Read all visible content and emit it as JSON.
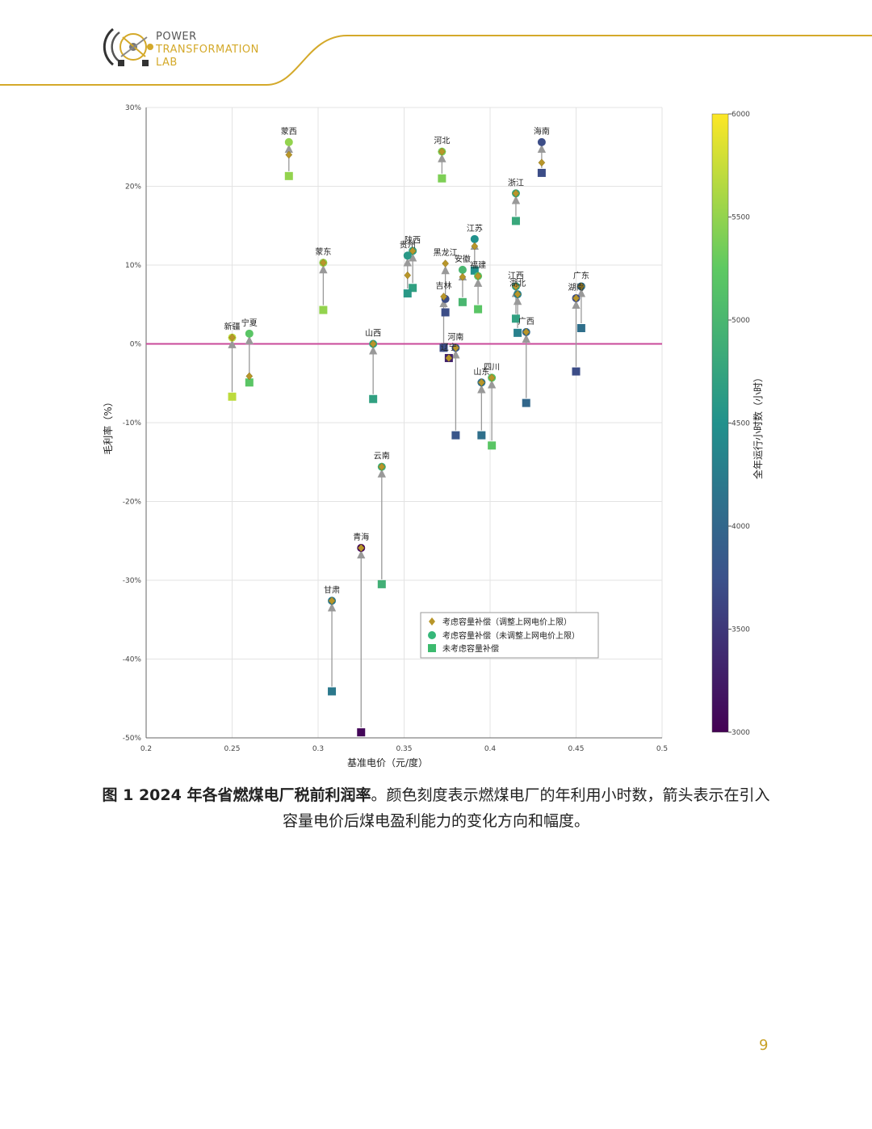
{
  "logo": {
    "line1": "POWER",
    "line2": "TRANSFORMATION",
    "line3": "LAB"
  },
  "page_number": "9",
  "caption": {
    "bold": "图 1 2024 年各省燃煤电厂税前利润率",
    "text": "。颜色刻度表示燃煤电厂的年利用小时数，箭头表示在引入容量电价后煤电盈利能力的变化方向和幅度。"
  },
  "colors": {
    "accent": "#d4a92a",
    "zero_line": "#c94a9a",
    "arrow": "#999999"
  },
  "chart_data": {
    "type": "scatter",
    "xlabel": "基准电价（元/度）",
    "ylabel": "毛利率（%）",
    "xlim": [
      0.2,
      0.5
    ],
    "ylim": [
      -50,
      30
    ],
    "xticks": [
      "0.2",
      "0.25",
      "0.3",
      "0.35",
      "0.4",
      "0.45",
      "0.5"
    ],
    "yticks": [
      "30%",
      "20%",
      "10%",
      "0%",
      "-10%",
      "-20%",
      "-30%",
      "-40%",
      "-50%"
    ],
    "colorbar": {
      "label": "全年运行小时数（小时）",
      "min": 3000,
      "max": 6000,
      "ticks": [
        "6000",
        "5500",
        "5000",
        "4500",
        "4000",
        "3500",
        "3000"
      ]
    },
    "legend": {
      "position": "bottom-right",
      "entries": [
        "考虑容量补偿（调整上网电价上限）",
        "考虑容量补偿（未调整上网电价上限）",
        "未考虑容量补偿"
      ]
    },
    "provinces": [
      {
        "name": "蒙西",
        "x": 0.283,
        "diamond": 24,
        "circle": 25.6,
        "square": 21.3,
        "hours": 5500
      },
      {
        "name": "河北",
        "x": 0.372,
        "diamond": 24.4,
        "circle": 24.4,
        "square": 21,
        "hours": 5400
      },
      {
        "name": "海南",
        "x": 0.43,
        "diamond": 23,
        "circle": 25.6,
        "square": 21.7,
        "hours": 3700
      },
      {
        "name": "浙江",
        "x": 0.415,
        "diamond": 19.1,
        "circle": 19.1,
        "square": 15.6,
        "hours": 4800
      },
      {
        "name": "蒙东",
        "x": 0.303,
        "diamond": 10.3,
        "circle": 10.3,
        "square": 4.3,
        "hours": 5500
      },
      {
        "name": "陕西",
        "x": 0.355,
        "diamond": 11.8,
        "circle": 11.8,
        "square": 7.1,
        "hours": 4700
      },
      {
        "name": "贵州",
        "x": 0.352,
        "diamond": 8.7,
        "circle": 11.2,
        "square": 6.4,
        "hours": 4600
      },
      {
        "name": "江苏",
        "x": 0.391,
        "diamond": 12.4,
        "circle": 13.3,
        "square": 9.3,
        "hours": 4500
      },
      {
        "name": "福建",
        "x": 0.393,
        "diamond": 8.6,
        "circle": 8.6,
        "square": 4.4,
        "hours": 5200
      },
      {
        "name": "安徽",
        "x": 0.384,
        "diamond": 8.5,
        "circle": 9.4,
        "square": 5.3,
        "hours": 5000
      },
      {
        "name": "黑龙江",
        "x": 0.374,
        "diamond": 10.2,
        "circle": 5.7,
        "square": 4,
        "hours": 3700
      },
      {
        "name": "江西",
        "x": 0.415,
        "diamond": 7.3,
        "circle": 7.3,
        "square": 3.2,
        "hours": 4700
      },
      {
        "name": "湖北",
        "x": 0.416,
        "diamond": 6.3,
        "circle": 6.3,
        "square": 1.4,
        "hours": 4300
      },
      {
        "name": "广东",
        "x": 0.453,
        "diamond": 7.3,
        "circle": 7.3,
        "square": 2,
        "hours": 4100
      },
      {
        "name": "新疆",
        "x": 0.25,
        "diamond": 0.8,
        "circle": 0.8,
        "square": -6.7,
        "hours": 5700
      },
      {
        "name": "宁夏",
        "x": 0.26,
        "diamond": -4.1,
        "circle": 1.3,
        "square": -4.9,
        "hours": 5200
      },
      {
        "name": "山西",
        "x": 0.332,
        "diamond": 0,
        "circle": 0,
        "square": -7,
        "hours": 4700
      },
      {
        "name": "吉林",
        "x": 0.373,
        "diamond": 6,
        "circle": -0.5,
        "square": -0.5,
        "hours": 3700
      },
      {
        "name": "辽宁",
        "x": 0.376,
        "diamond": -1.8,
        "circle": -1.8,
        "square": -1.8,
        "hours": 3300
      },
      {
        "name": "河南",
        "x": 0.38,
        "diamond": -0.5,
        "circle": -0.5,
        "square": -11.6,
        "hours": 3800
      },
      {
        "name": "山东",
        "x": 0.395,
        "diamond": -4.9,
        "circle": -4.9,
        "square": -11.6,
        "hours": 4100
      },
      {
        "name": "四川",
        "x": 0.401,
        "diamond": -4.3,
        "circle": -4.3,
        "square": -12.9,
        "hours": 5200
      },
      {
        "name": "广西",
        "x": 0.421,
        "diamond": 1.5,
        "circle": 1.5,
        "square": -7.5,
        "hours": 4000
      },
      {
        "name": "湖南",
        "x": 0.45,
        "diamond": 5.8,
        "circle": 5.8,
        "square": -3.5,
        "hours": 3700
      },
      {
        "name": "云南",
        "x": 0.337,
        "diamond": -15.6,
        "circle": -15.6,
        "square": -30.5,
        "hours": 4900
      },
      {
        "name": "青海",
        "x": 0.325,
        "diamond": -25.9,
        "circle": -25.9,
        "square": -49.3,
        "hours": 3050
      },
      {
        "name": "甘肃",
        "x": 0.308,
        "diamond": -32.6,
        "circle": -32.6,
        "square": -44.1,
        "hours": 4200
      }
    ]
  }
}
